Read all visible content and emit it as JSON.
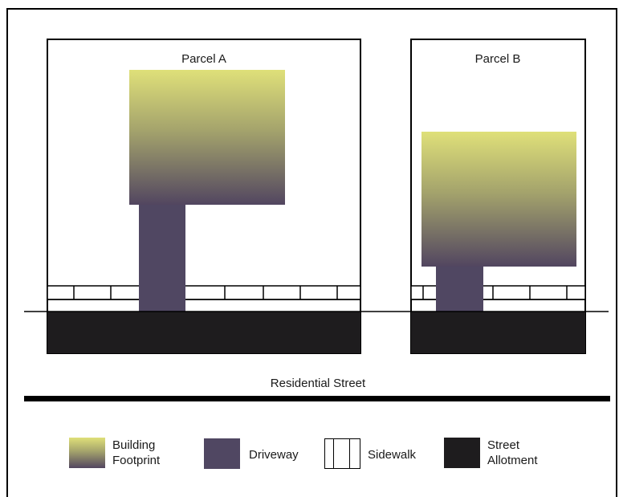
{
  "diagram": {
    "parcels": [
      {
        "label": "Parcel A"
      },
      {
        "label": "Parcel B"
      }
    ],
    "street_label": "Residential Street"
  },
  "legend": {
    "items": [
      {
        "line1": "Building",
        "line2": "Footprint"
      },
      {
        "line1": "Driveway",
        "line2": ""
      },
      {
        "line1": "Sidewalk",
        "line2": ""
      },
      {
        "line1": "Street",
        "line2": "Allotment"
      }
    ]
  },
  "colors": {
    "footprint_top": "#dfe079",
    "footprint_bottom": "#524660",
    "driveway": "#504762",
    "street_allotment": "#1e1c1e",
    "line": "#000000"
  }
}
